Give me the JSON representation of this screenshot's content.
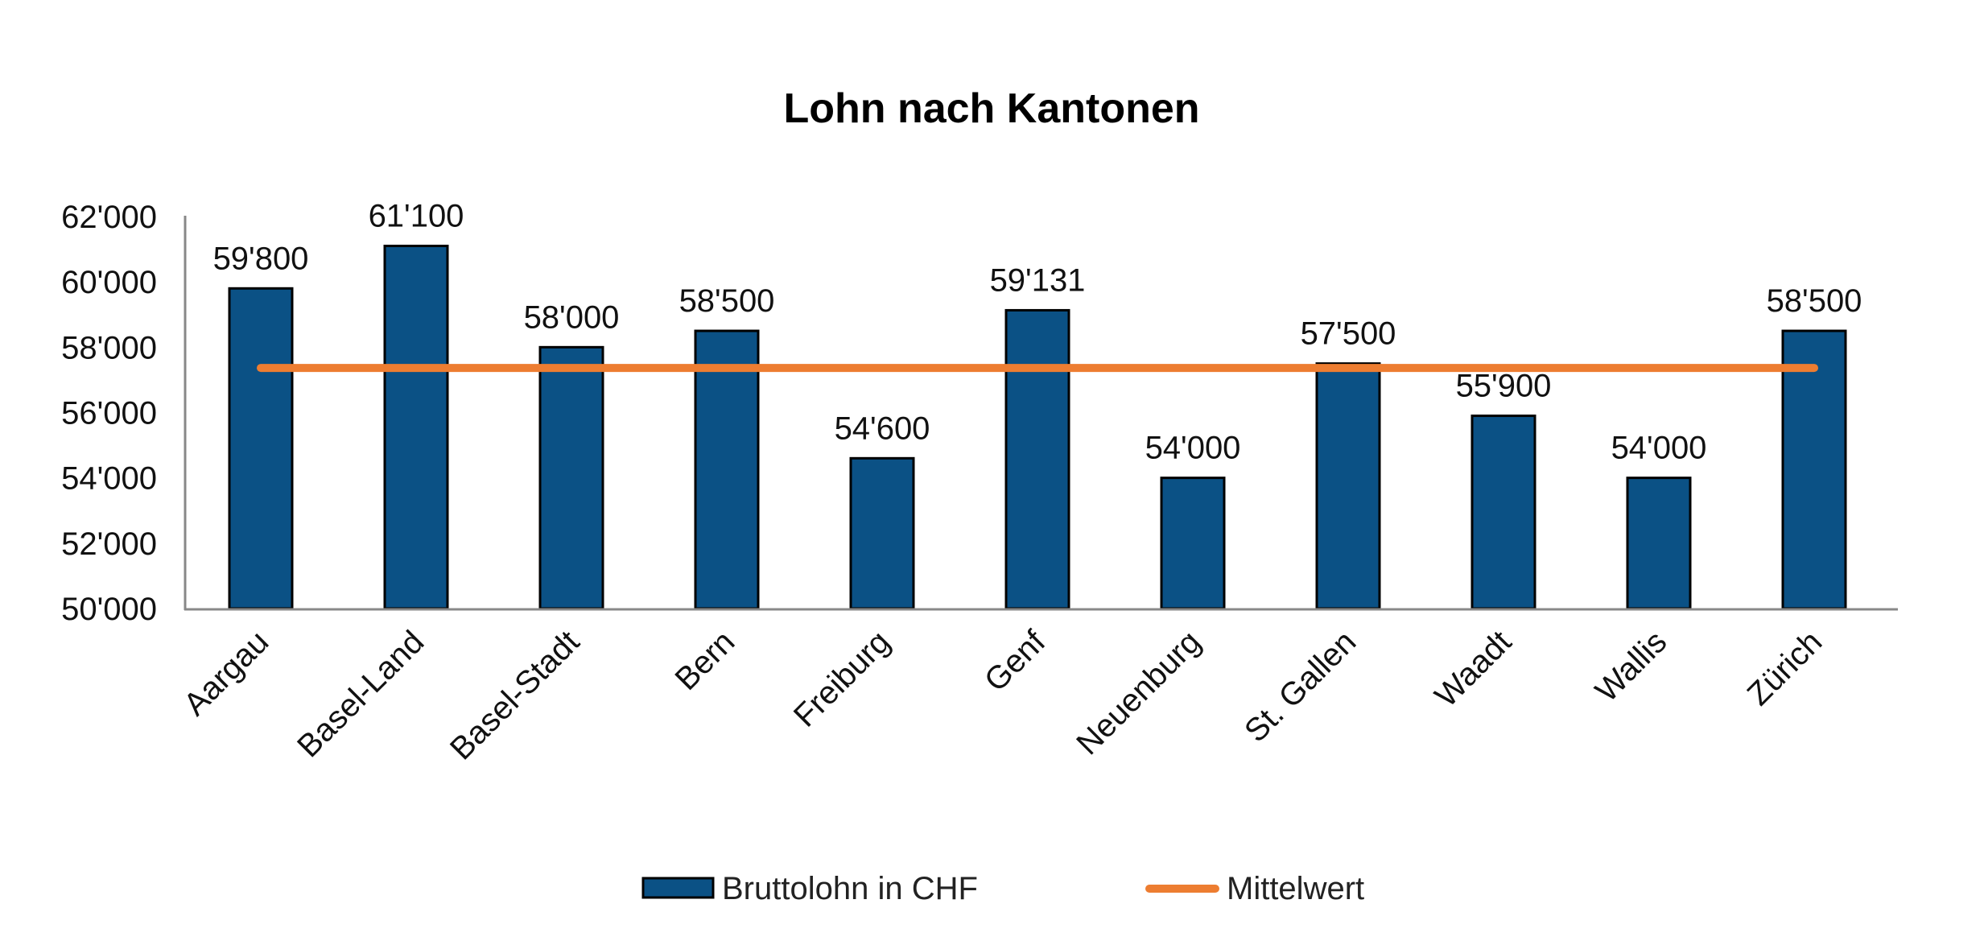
{
  "chart_data": {
    "type": "bar",
    "title": "Lohn nach Kantonen",
    "xlabel": "",
    "ylabel": "",
    "ylim": [
      50000,
      62000
    ],
    "y_ticks": [
      "50'000",
      "52'000",
      "54'000",
      "56'000",
      "58'000",
      "60'000",
      "62'000"
    ],
    "y_tick_values": [
      50000,
      52000,
      54000,
      56000,
      58000,
      60000,
      62000
    ],
    "grid": false,
    "legend_position": "bottom",
    "categories": [
      "Aargau",
      "Basel-Land",
      "Basel-Stadt",
      "Bern",
      "Freiburg",
      "Genf",
      "Neuenburg",
      "St. Gallen",
      "Waadt",
      "Wallis",
      "Zürich"
    ],
    "series": [
      {
        "name": "Bruttolohn in CHF",
        "type": "bar",
        "color": "#0b5185",
        "values": [
          59800,
          61100,
          58000,
          58500,
          54600,
          59131,
          54000,
          57500,
          55900,
          54000,
          58500
        ],
        "data_labels": [
          "59'800",
          "61'100",
          "58'000",
          "58'500",
          "54'600",
          "59'131",
          "54'000",
          "57'500",
          "55'900",
          "54'000",
          "58'500"
        ]
      },
      {
        "name": "Mittelwert",
        "type": "line",
        "color": "#ed7d31",
        "values": [
          57366,
          57366,
          57366,
          57366,
          57366,
          57366,
          57366,
          57366,
          57366,
          57366,
          57366
        ]
      }
    ]
  }
}
